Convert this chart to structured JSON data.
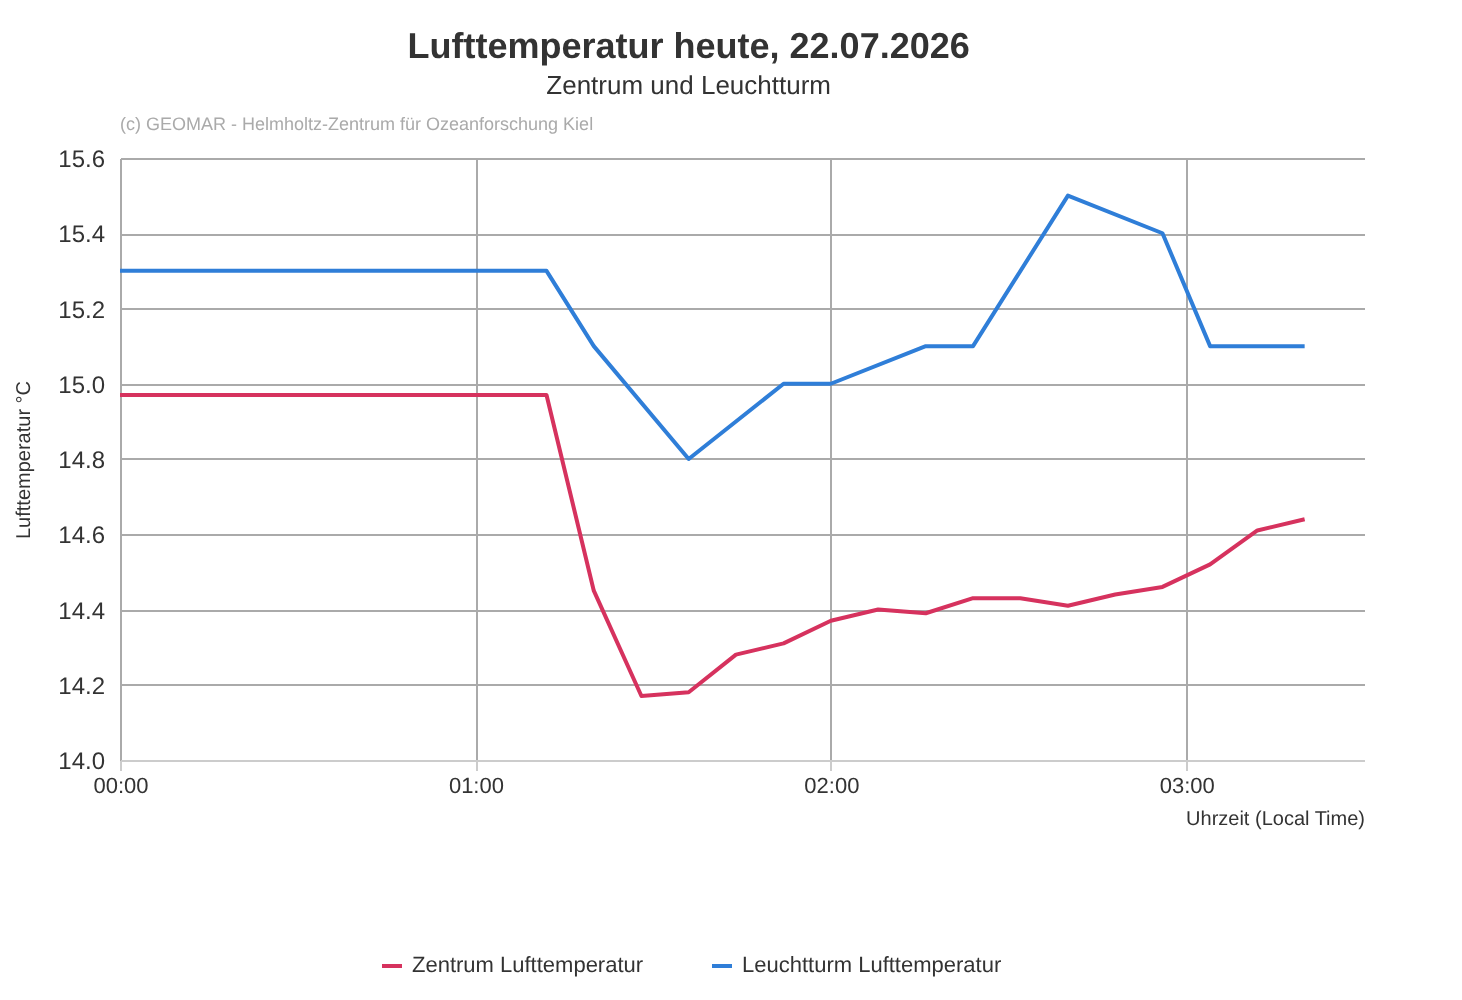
{
  "chart_data": {
    "type": "line",
    "title": "Lufttemperatur heute, 22.07.2026",
    "subtitle": "Zentrum und Leuchtturm",
    "xlabel": "Uhrzeit (Local Time)",
    "ylabel": "Lufttemperatur °C",
    "annotations": [
      "(c) GEOMAR - Helmholtz-Zentrum für Ozeanforschung Kiel"
    ],
    "series": [
      {
        "name": "Zentrum Lufttemperatur",
        "color": "#d6325e",
        "x": [
          0,
          1.2,
          1.333,
          1.467,
          1.6,
          1.733,
          1.867,
          2.0,
          2.133,
          2.267,
          2.4,
          2.533,
          2.667,
          2.8,
          2.933,
          3.067,
          3.2,
          3.333
        ],
        "values": [
          14.97,
          14.97,
          14.45,
          14.17,
          14.18,
          14.28,
          14.31,
          14.37,
          14.4,
          14.39,
          14.43,
          14.43,
          14.41,
          14.44,
          14.46,
          14.52,
          14.61,
          14.64
        ]
      },
      {
        "name": "Leuchtturm Lufttemperatur",
        "color": "#2f7ed8",
        "x": [
          0,
          1.2,
          1.333,
          1.6,
          1.867,
          2.0,
          2.267,
          2.4,
          2.667,
          2.933,
          3.067,
          3.333
        ],
        "values": [
          15.3,
          15.3,
          15.1,
          14.8,
          15.0,
          15.0,
          15.1,
          15.1,
          15.5,
          15.4,
          15.1,
          15.1
        ]
      }
    ],
    "xlim": [
      0,
      3.5
    ],
    "xticks": [
      {
        "value": 0,
        "label": "00:00"
      },
      {
        "value": 1,
        "label": "01:00"
      },
      {
        "value": 2,
        "label": "02:00"
      },
      {
        "value": 3,
        "label": "03:00"
      }
    ],
    "ylim": [
      14,
      15.6
    ],
    "yticks": [
      {
        "value": 14,
        "label": "14.0"
      },
      14.2,
      14.4,
      14.6,
      14.8,
      {
        "value": 15,
        "label": "15.0"
      },
      15.2,
      15.4,
      15.6
    ],
    "grid": true,
    "legend": "bottom",
    "line_style": "solid",
    "marker": "none"
  }
}
